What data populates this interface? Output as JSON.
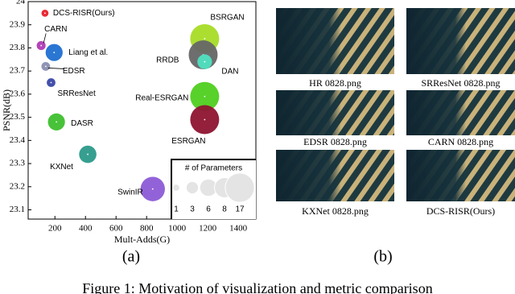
{
  "chart_data": {
    "type": "scatter",
    "ylabel": "PSNR(dB)",
    "xlabel": "Mult-Adds(G)",
    "labels": [
      "DCS-RISR(Ours)",
      "CARN",
      "Liang et al.",
      "EDSR",
      "SRResNet",
      "DASR",
      "KXNet",
      "SwinIR",
      "BSRGAN",
      "RRDB",
      "DAN",
      "Real-ESRGAN",
      "ESRGAN"
    ],
    "x": [
      135,
      110,
      195,
      140,
      175,
      210,
      415,
      840,
      1180,
      1170,
      1180,
      1180,
      1180
    ],
    "values": [
      23.95,
      23.81,
      23.78,
      23.72,
      23.65,
      23.48,
      23.34,
      23.19,
      23.84,
      23.77,
      23.74,
      23.59,
      23.49
    ],
    "sizes": [
      1,
      1.6,
      5.8,
      1.5,
      1.5,
      5.8,
      6,
      11.9,
      16.7,
      16.7,
      4.3,
      16.7,
      16.7
    ],
    "colors": [
      "#e8202a",
      "#b03bb5",
      "#1f6fd1",
      "#8a8fb0",
      "#3a47a8",
      "#3ebf2e",
      "#2b9a8a",
      "#8c5bd6",
      "#a7dc26",
      "#666666",
      "#4fe0c0",
      "#4fcf1f",
      "#8e1430"
    ],
    "size_legend_title": "# of Parameters",
    "size_legend": [
      1,
      3,
      6,
      8,
      17
    ],
    "xlim": [
      25,
      1515
    ],
    "ylim": [
      23.06,
      24.0
    ],
    "xticks": [
      200,
      400,
      600,
      800,
      1000,
      1200,
      1400
    ],
    "yticks": [
      23.1,
      23.2,
      23.3,
      23.4,
      23.5,
      23.6,
      23.7,
      23.8,
      23.9,
      24
    ],
    "grid": false
  },
  "panel_b": {
    "images": [
      "HR 0828.png",
      "SRResNet 0828.png",
      "EDSR 0828.png",
      "CARN 0828.png",
      "KXNet 0828.png",
      "DCS-RISR(Ours)"
    ]
  },
  "subcaptions": [
    "(a)",
    "(b)"
  ],
  "caption": "Figure 1: Motivation of visualization and metric comparison"
}
